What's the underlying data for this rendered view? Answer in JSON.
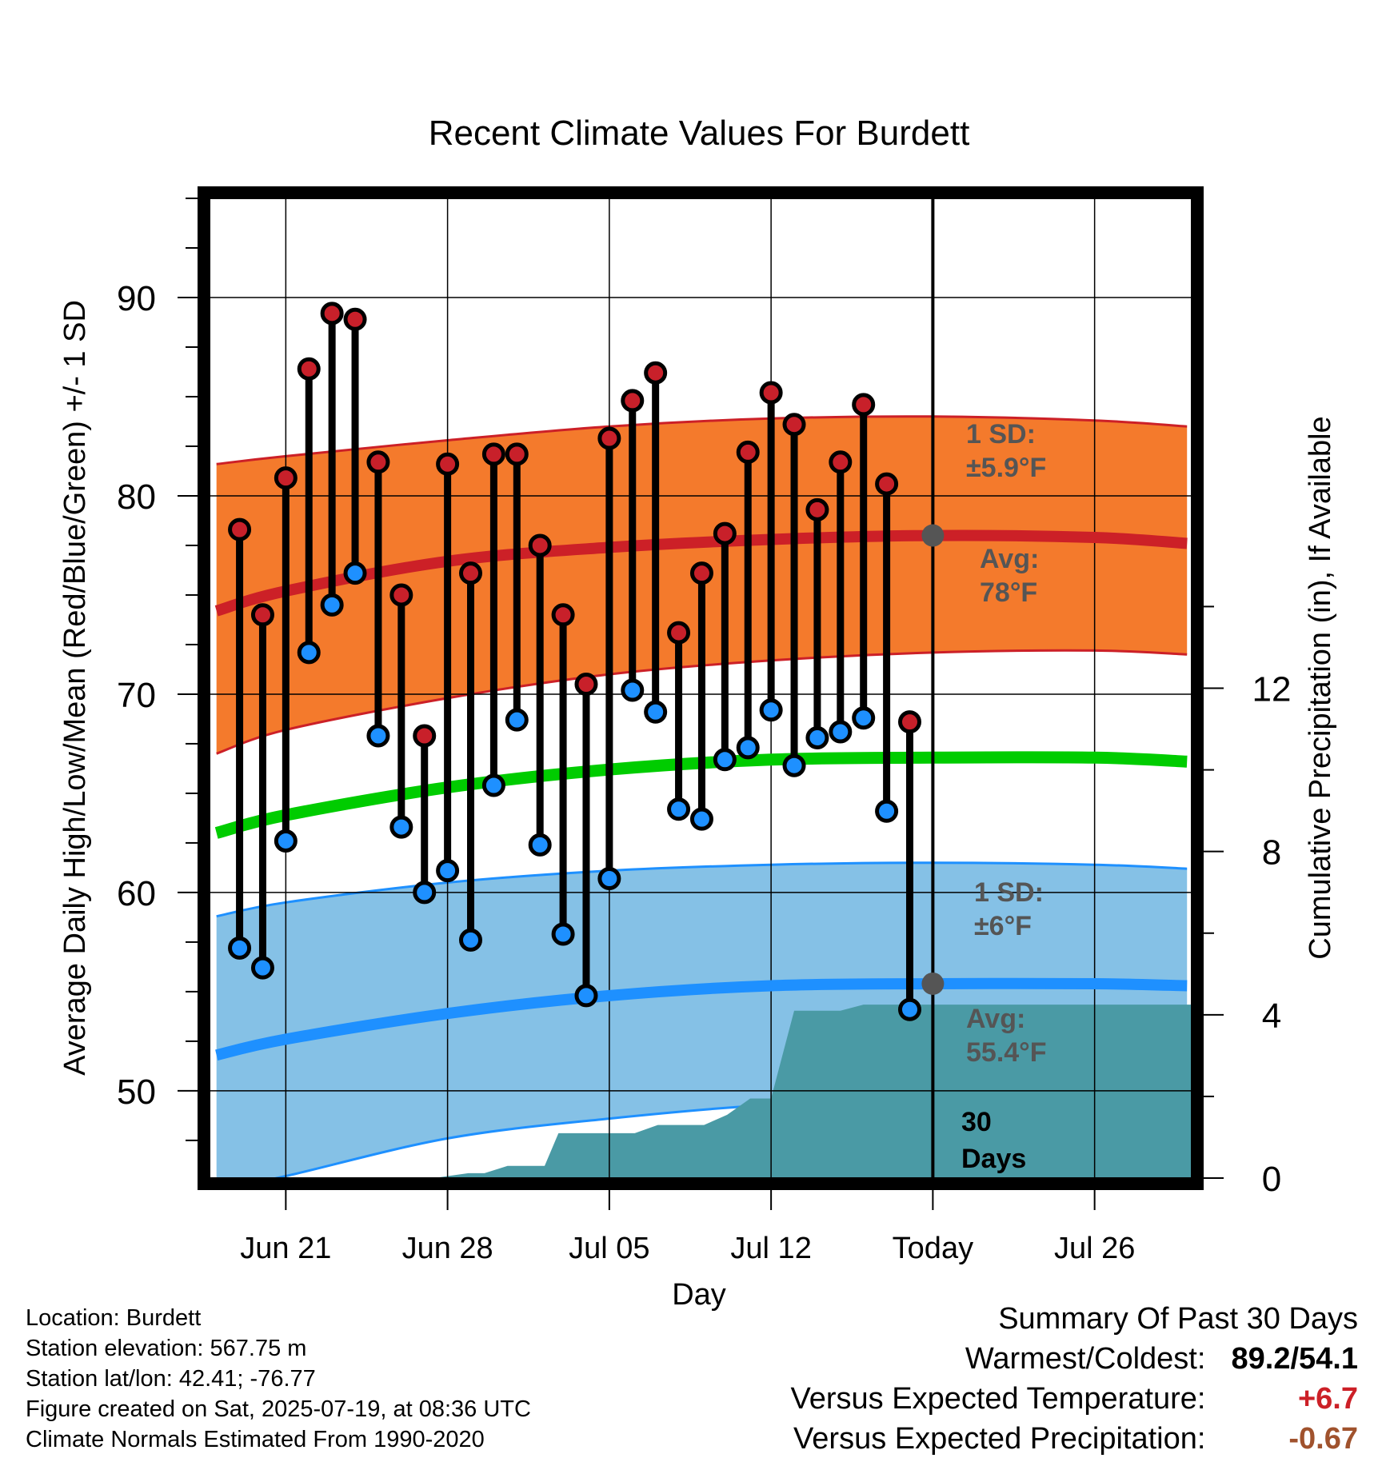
{
  "chart_data": {
    "type": "line",
    "title": "Recent Climate Values For Burdett",
    "xlabel": "Day",
    "ylabel": "Average Daily High/Low/Mean (Red/Blue/Green) +/- 1 SD",
    "y2label": "Cumulative Precipitation (in), If Available",
    "xrange": [
      -3.3,
      39.2
    ],
    "ylim": [
      45.6,
      95
    ],
    "y2lim": [
      0,
      24
    ],
    "xticks": [
      {
        "day": 0,
        "label": "Jun 21"
      },
      {
        "day": 7,
        "label": "Jun 28"
      },
      {
        "day": 14,
        "label": "Jul 05"
      },
      {
        "day": 21,
        "label": "Jul 12"
      },
      {
        "day": 28,
        "label": "Today"
      },
      {
        "day": 35,
        "label": "Jul 26"
      }
    ],
    "yticks": [
      50,
      60,
      70,
      80,
      90
    ],
    "y2ticks": [
      0,
      4,
      8,
      12
    ],
    "grid": true,
    "today_day": 28,
    "normal_days": [
      -3,
      0,
      7,
      14,
      21,
      28,
      35,
      39
    ],
    "normal_high": [
      74.2,
      75.2,
      76.7,
      77.4,
      77.8,
      78.0,
      77.9,
      77.6
    ],
    "high_sd_upper": [
      81.6,
      82.0,
      82.8,
      83.5,
      83.9,
      84.0,
      83.8,
      83.5
    ],
    "high_sd_lower": [
      67.0,
      68.2,
      69.8,
      71.0,
      71.7,
      72.1,
      72.2,
      72.0
    ],
    "normal_mean": [
      63.0,
      63.9,
      65.3,
      66.2,
      66.7,
      66.8,
      66.8,
      66.6
    ],
    "normal_low": [
      51.8,
      52.6,
      53.9,
      54.8,
      55.3,
      55.4,
      55.4,
      55.3
    ],
    "low_sd_upper": [
      58.8,
      59.5,
      60.5,
      61.1,
      61.4,
      61.5,
      61.4,
      61.2
    ],
    "low_sd_lower": [
      45.0,
      45.7,
      47.6,
      48.6,
      49.3,
      49.6,
      49.8,
      49.8
    ],
    "sd_labels": {
      "high_sd": [
        "1 SD:",
        "±5.9°F"
      ],
      "high_avg": [
        "Avg:",
        "78°F"
      ],
      "low_sd": [
        "1 SD:",
        "±6°F"
      ],
      "low_avg": [
        "Avg:",
        "55.4°F"
      ]
    },
    "days_label": [
      "30",
      "Days"
    ],
    "series": [
      {
        "name": "Daily High",
        "color": "#c8202a",
        "days": [
          -2,
          -1,
          0,
          1,
          2,
          3,
          4,
          5,
          6,
          7,
          8,
          9,
          10,
          11,
          12,
          13,
          14,
          15,
          16,
          17,
          18,
          19,
          20,
          21,
          22,
          23,
          24,
          25,
          26,
          27
        ],
        "values": [
          78.3,
          74.0,
          80.9,
          86.4,
          89.2,
          88.9,
          81.7,
          75.0,
          67.9,
          81.6,
          76.1,
          82.1,
          82.1,
          77.5,
          74.0,
          70.5,
          82.9,
          84.8,
          86.2,
          73.1,
          76.1,
          78.1,
          82.2,
          85.2,
          83.6,
          79.3,
          81.7,
          84.6,
          80.6,
          68.6
        ]
      },
      {
        "name": "Daily Low",
        "color": "#1e90ff",
        "days": [
          -2,
          -1,
          0,
          1,
          2,
          3,
          4,
          5,
          6,
          7,
          8,
          9,
          10,
          11,
          12,
          13,
          14,
          15,
          16,
          17,
          18,
          19,
          20,
          21,
          22,
          23,
          24,
          25,
          26,
          27
        ],
        "values": [
          57.2,
          56.2,
          62.6,
          72.1,
          74.5,
          76.1,
          67.9,
          63.3,
          60.0,
          61.1,
          57.6,
          65.4,
          68.7,
          62.4,
          57.9,
          54.8,
          60.7,
          70.2,
          69.1,
          64.2,
          63.7,
          66.7,
          67.3,
          69.2,
          66.4,
          67.8,
          68.1,
          68.8,
          64.1,
          54.1
        ]
      },
      {
        "name": "Cumulative Precipitation",
        "color": "#4a9aa5",
        "days": [
          -3.3,
          6.4,
          7.9,
          8.6,
          9.6,
          10.2,
          11.2,
          11.8,
          13.1,
          15.1,
          16.1,
          17.1,
          18.1,
          19.1,
          20.1,
          21.0,
          22.0,
          23.0,
          24.0,
          25.0,
          39.2
        ],
        "values": [
          0,
          0,
          0.12,
          0.12,
          0.3,
          0.3,
          0.3,
          1.1,
          1.1,
          1.1,
          1.3,
          1.3,
          1.3,
          1.55,
          1.95,
          1.95,
          4.1,
          4.1,
          4.1,
          4.25,
          4.25
        ]
      }
    ]
  },
  "footer": {
    "location": "Location: Burdett",
    "elevation": "Station elevation: 567.75 m",
    "latlon": "Station lat/lon: 42.41; -76.77",
    "created": "Figure created on Sat, 2025-07-19, at 08:36 UTC",
    "normals": "Climate Normals Estimated From 1990-2020"
  },
  "summary": {
    "heading": "Summary Of Past 30 Days",
    "warmest_label": "Warmest/Coldest:",
    "warmest_value": "89.2/54.1",
    "temp_label": "Versus Expected Temperature:",
    "temp_value": "+6.7",
    "temp_color": "#cc2027",
    "precip_label": "Versus Expected Precipitation:",
    "precip_value": "-0.67",
    "precip_color": "#a0522d"
  },
  "colors": {
    "high_band": "#f47a2c",
    "high_line": "#cc2027",
    "mean_line": "#00cc00",
    "low_band": "#85c1e6",
    "low_line": "#1e90ff",
    "precip_fill": "#4a9aa5",
    "avg_marker": "#555555"
  }
}
